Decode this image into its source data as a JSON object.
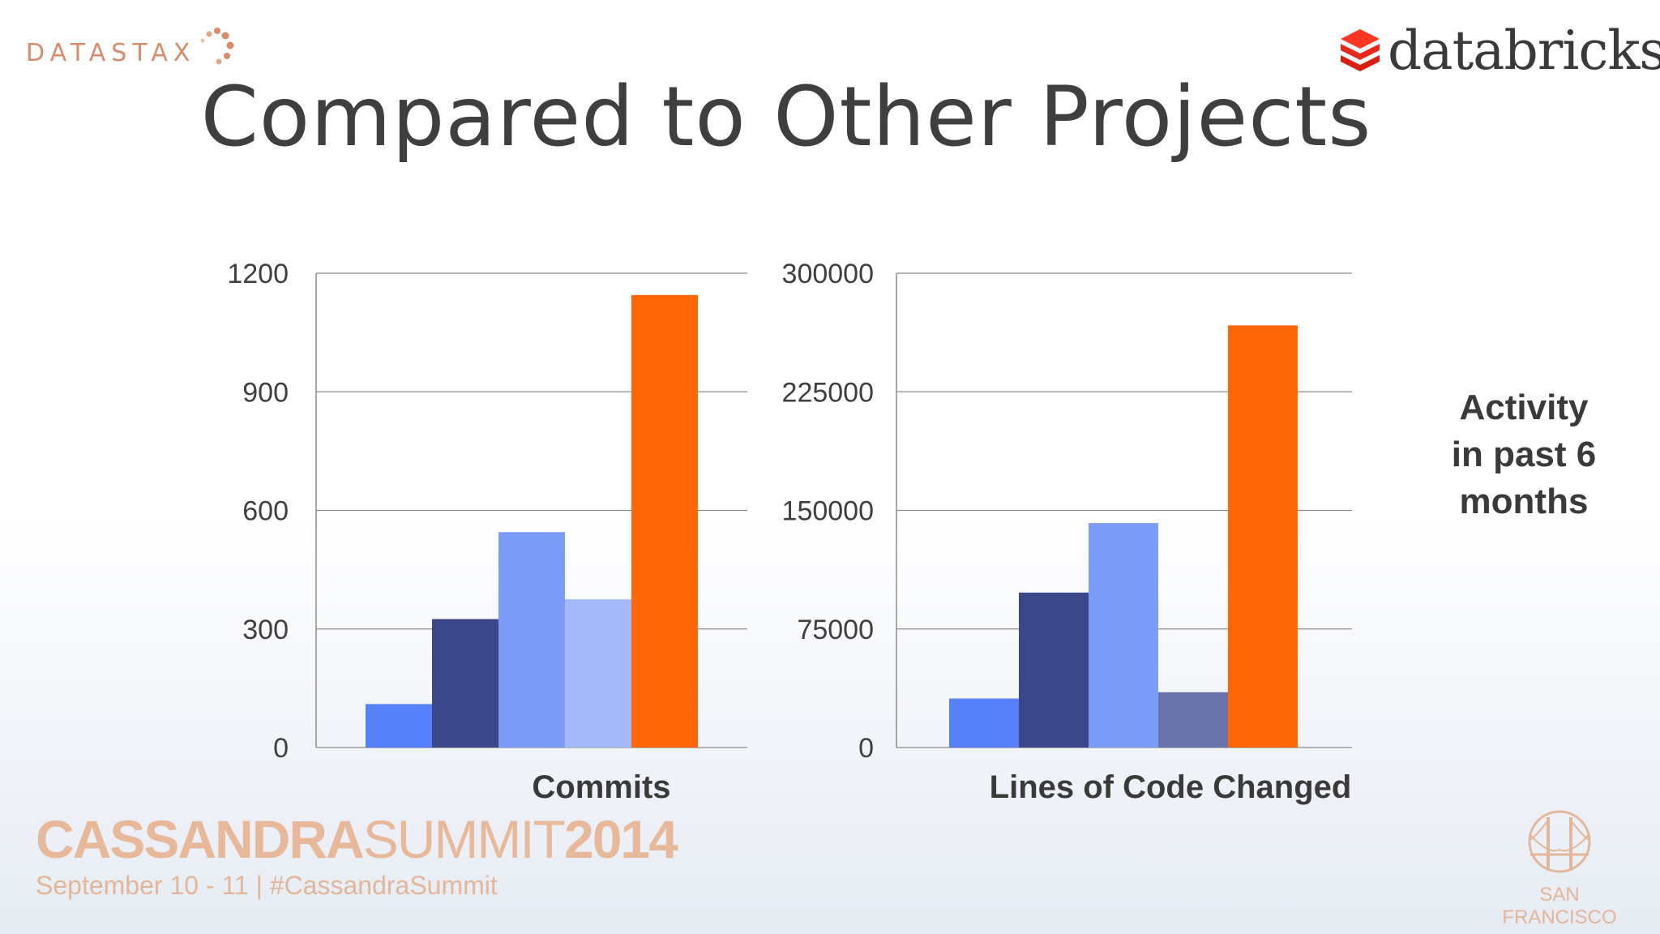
{
  "header": {
    "datastax_logo_text": "DATASTAX",
    "databricks_logo_text": "databricks",
    "title": "Compared to Other Projects"
  },
  "side_note": [
    "Activity",
    "in past 6",
    "months"
  ],
  "footer": {
    "summit_bold_1": "CASSANDRA",
    "summit_light": "SUMMIT",
    "summit_bold_2": "2014",
    "summit_subtitle": "September 10 - 11  |  #CassandraSummit",
    "city": "SAN FRANCISCO"
  },
  "colors": {
    "bar_colors": [
      "#5580f7",
      "#3c4789",
      "#7b9cf7",
      "#a3b9f8",
      "#ff6608"
    ],
    "bar_colors_chart2": [
      "#5580f7",
      "#3c4789",
      "#7b9cf7",
      "#6a72aa",
      "#ff6608"
    ],
    "grid": "#8c8c8c",
    "accent": "#e8b89a"
  },
  "chart_data": [
    {
      "type": "bar",
      "xlabel": "Commits",
      "ylabel": "",
      "ylim": [
        0,
        1200
      ],
      "yticks": [
        "0",
        "300",
        "600",
        "900",
        "1200"
      ],
      "categories": [
        "",
        "",
        "",
        "",
        ""
      ],
      "values": [
        110,
        325,
        545,
        375,
        1145
      ],
      "grid": true,
      "legend": "none"
    },
    {
      "type": "bar",
      "xlabel": "Lines of Code Changed",
      "ylabel": "",
      "ylim": [
        0,
        300000
      ],
      "yticks": [
        "0",
        "75000",
        "150000",
        "225000",
        "300000"
      ],
      "categories": [
        "",
        "",
        "",
        "",
        ""
      ],
      "values": [
        31000,
        98000,
        142000,
        35000,
        267000
      ],
      "grid": true,
      "legend": "none"
    }
  ]
}
